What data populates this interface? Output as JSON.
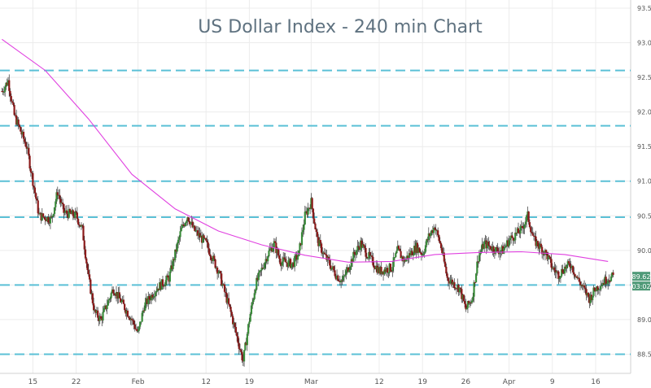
{
  "chart_data": {
    "type": "candlestick",
    "title": "US Dollar Index - 240 min Chart",
    "xlabel": "",
    "ylabel": "",
    "ylim": [
      88.2,
      93.5
    ],
    "y_ticks": [
      "93.50",
      "93.00",
      "92.50",
      "92.00",
      "91.50",
      "91.00",
      "90.50",
      "90.00",
      "89.50",
      "89.00",
      "88.50"
    ],
    "x_ticks": [
      "15",
      "22",
      "Feb",
      "12",
      "19",
      "Mar",
      "12",
      "19",
      "26",
      "Apr",
      "9",
      "16"
    ],
    "grid": true,
    "current_price_tag": "89.62",
    "countdown_tag": "03:02",
    "horizontal_levels": [
      92.6,
      91.8,
      91.0,
      90.48,
      89.5,
      88.5
    ],
    "moving_average": {
      "color": "#e040e0",
      "x": [
        "Jan 10",
        "Jan 17",
        "Jan 24",
        "Jan 31",
        "Feb 7",
        "Feb 14",
        "Feb 21",
        "Feb 28",
        "Mar 7",
        "Mar 14",
        "Mar 21",
        "Mar 28",
        "Apr 4",
        "Apr 11",
        "Apr 18"
      ],
      "values": [
        93.05,
        92.6,
        91.9,
        91.1,
        90.6,
        90.28,
        90.08,
        89.93,
        89.83,
        89.84,
        89.94,
        89.97,
        89.98,
        89.94,
        89.84
      ]
    },
    "candles": {
      "color_up": "#3a8c3a",
      "color_down": "#8b1a1a",
      "close_path": [
        [
          "Jan 10",
          92.3
        ],
        [
          "Jan 11",
          92.45
        ],
        [
          "Jan 12",
          91.95
        ],
        [
          "Jan 14",
          91.5
        ],
        [
          "Jan 15",
          91.0
        ],
        [
          "Jan 16",
          90.5
        ],
        [
          "Jan 18",
          90.45
        ],
        [
          "Jan 19",
          90.85
        ],
        [
          "Jan 20",
          90.55
        ],
        [
          "Jan 22",
          90.5
        ],
        [
          "Jan 23",
          90.3
        ],
        [
          "Jan 24",
          89.6
        ],
        [
          "Jan 25",
          89.1
        ],
        [
          "Jan 26",
          89.0
        ],
        [
          "Jan 28",
          89.45
        ],
        [
          "Jan 29",
          89.3
        ],
        [
          "Jan 31",
          89.0
        ],
        [
          "Feb 1",
          88.8
        ],
        [
          "Feb 2",
          89.2
        ],
        [
          "Feb 4",
          89.45
        ],
        [
          "Feb 6",
          89.6
        ],
        [
          "Feb 8",
          90.3
        ],
        [
          "Feb 9",
          90.5
        ],
        [
          "Feb 10",
          90.3
        ],
        [
          "Feb 12",
          90.1
        ],
        [
          "Feb 13",
          89.9
        ],
        [
          "Feb 14",
          89.7
        ],
        [
          "Feb 15",
          89.4
        ],
        [
          "Feb 16",
          89.1
        ],
        [
          "Feb 17",
          88.75
        ],
        [
          "Feb 18",
          88.4
        ],
        [
          "Feb 19",
          89.0
        ],
        [
          "Feb 20",
          89.5
        ],
        [
          "Feb 22",
          89.95
        ],
        [
          "Feb 23",
          90.1
        ],
        [
          "Feb 24",
          89.85
        ],
        [
          "Feb 26",
          89.8
        ],
        [
          "Feb 27",
          89.95
        ],
        [
          "Feb 28",
          90.5
        ],
        [
          "Mar 1",
          90.7
        ],
        [
          "Mar 2",
          90.15
        ],
        [
          "Mar 3",
          89.95
        ],
        [
          "Mar 5",
          89.65
        ],
        [
          "Mar 6",
          89.55
        ],
        [
          "Mar 8",
          89.95
        ],
        [
          "Mar 9",
          90.1
        ],
        [
          "Mar 10",
          89.95
        ],
        [
          "Mar 12",
          89.7
        ],
        [
          "Mar 14",
          89.75
        ],
        [
          "Mar 15",
          90.0
        ],
        [
          "Mar 16",
          89.85
        ],
        [
          "Mar 18",
          90.05
        ],
        [
          "Mar 19",
          89.95
        ],
        [
          "Mar 20",
          90.2
        ],
        [
          "Mar 21",
          90.35
        ],
        [
          "Mar 22",
          90.05
        ],
        [
          "Mar 23",
          89.6
        ],
        [
          "Mar 25",
          89.45
        ],
        [
          "Mar 26",
          89.15
        ],
        [
          "Mar 27",
          89.3
        ],
        [
          "Mar 28",
          89.9
        ],
        [
          "Mar 29",
          90.1
        ],
        [
          "Mar 31",
          90.0
        ],
        [
          "Apr 1",
          90.0
        ],
        [
          "Apr 2",
          90.15
        ],
        [
          "Apr 4",
          90.3
        ],
        [
          "Apr 5",
          90.5
        ],
        [
          "Apr 6",
          90.15
        ],
        [
          "Apr 8",
          89.95
        ],
        [
          "Apr 9",
          89.75
        ],
        [
          "Apr 10",
          89.65
        ],
        [
          "Apr 11",
          89.75
        ],
        [
          "Apr 12",
          89.8
        ],
        [
          "Apr 13",
          89.6
        ],
        [
          "Apr 14",
          89.45
        ],
        [
          "Apr 15",
          89.3
        ],
        [
          "Apr 16",
          89.45
        ],
        [
          "Apr 18",
          89.6
        ],
        [
          "Apr 19",
          89.62
        ]
      ]
    }
  }
}
